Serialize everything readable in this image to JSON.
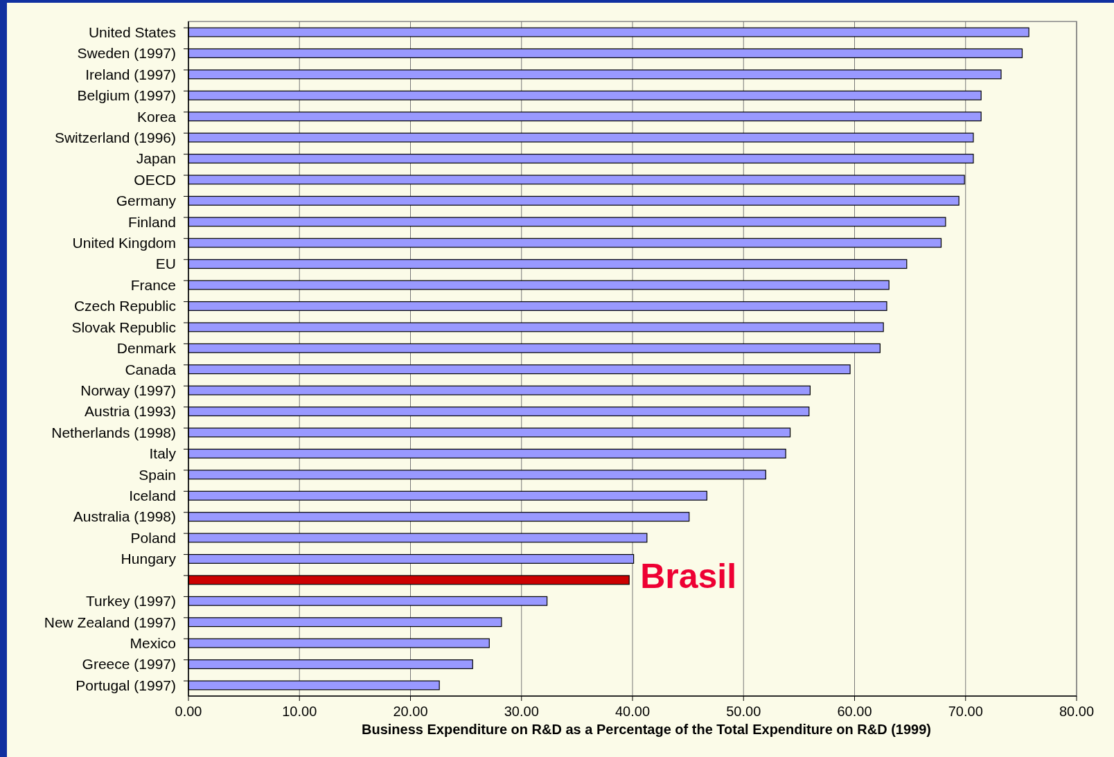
{
  "chart_data": {
    "type": "bar",
    "orientation": "horizontal",
    "xlabel": "Business Expenditure on R&D as a Percentage of the Total Expenditure on R&D (1999)",
    "categories": [
      "United States",
      "Sweden (1997)",
      "Ireland (1997)",
      "Belgium (1997)",
      "Korea",
      "Switzerland (1996)",
      "Japan",
      "OECD",
      "Germany",
      "Finland",
      "United Kingdom",
      "EU",
      "France",
      "Czech Republic",
      "Slovak Republic",
      "Denmark",
      "Canada",
      "Norway (1997)",
      "Austria (1993)",
      "Netherlands (1998)",
      "Italy",
      "Spain",
      "Iceland",
      "Australia (1998)",
      "Poland",
      "Hungary",
      null,
      "Turkey (1997)",
      "New Zealand (1997)",
      "Mexico",
      "Greece (1997)",
      "Portugal (1997)"
    ],
    "values": [
      75.7,
      75.1,
      73.2,
      71.4,
      71.4,
      70.7,
      70.7,
      69.9,
      69.4,
      68.2,
      67.8,
      64.7,
      63.1,
      62.9,
      62.6,
      62.3,
      59.6,
      56.0,
      55.9,
      54.2,
      53.8,
      52.0,
      46.7,
      45.1,
      41.3,
      40.1,
      39.7,
      32.3,
      28.2,
      27.1,
      25.6,
      22.6
    ],
    "colors": [
      "#9999ff",
      "#9999ff",
      "#9999ff",
      "#9999ff",
      "#9999ff",
      "#9999ff",
      "#9999ff",
      "#9999ff",
      "#9999ff",
      "#9999ff",
      "#9999ff",
      "#9999ff",
      "#9999ff",
      "#9999ff",
      "#9999ff",
      "#9999ff",
      "#9999ff",
      "#9999ff",
      "#9999ff",
      "#9999ff",
      "#9999ff",
      "#9999ff",
      "#9999ff",
      "#9999ff",
      "#9999ff",
      "#9999ff",
      "#cc0000",
      "#9999ff",
      "#9999ff",
      "#9999ff",
      "#9999ff",
      "#9999ff"
    ],
    "xlim": [
      0,
      80
    ],
    "xticks": [
      {
        "value": 0,
        "label": "0.00"
      },
      {
        "value": 10,
        "label": "10.00"
      },
      {
        "value": 20,
        "label": "20.00"
      },
      {
        "value": 30,
        "label": "30.00"
      },
      {
        "value": 40,
        "label": "40.00"
      },
      {
        "value": 50,
        "label": "50.00"
      },
      {
        "value": 60,
        "label": "60.00"
      },
      {
        "value": 70,
        "label": "70.00"
      },
      {
        "value": 80,
        "label": "80.00"
      }
    ],
    "grid": "x",
    "annotations": [
      {
        "text": "Brasil",
        "x": 39.7
      }
    ]
  }
}
